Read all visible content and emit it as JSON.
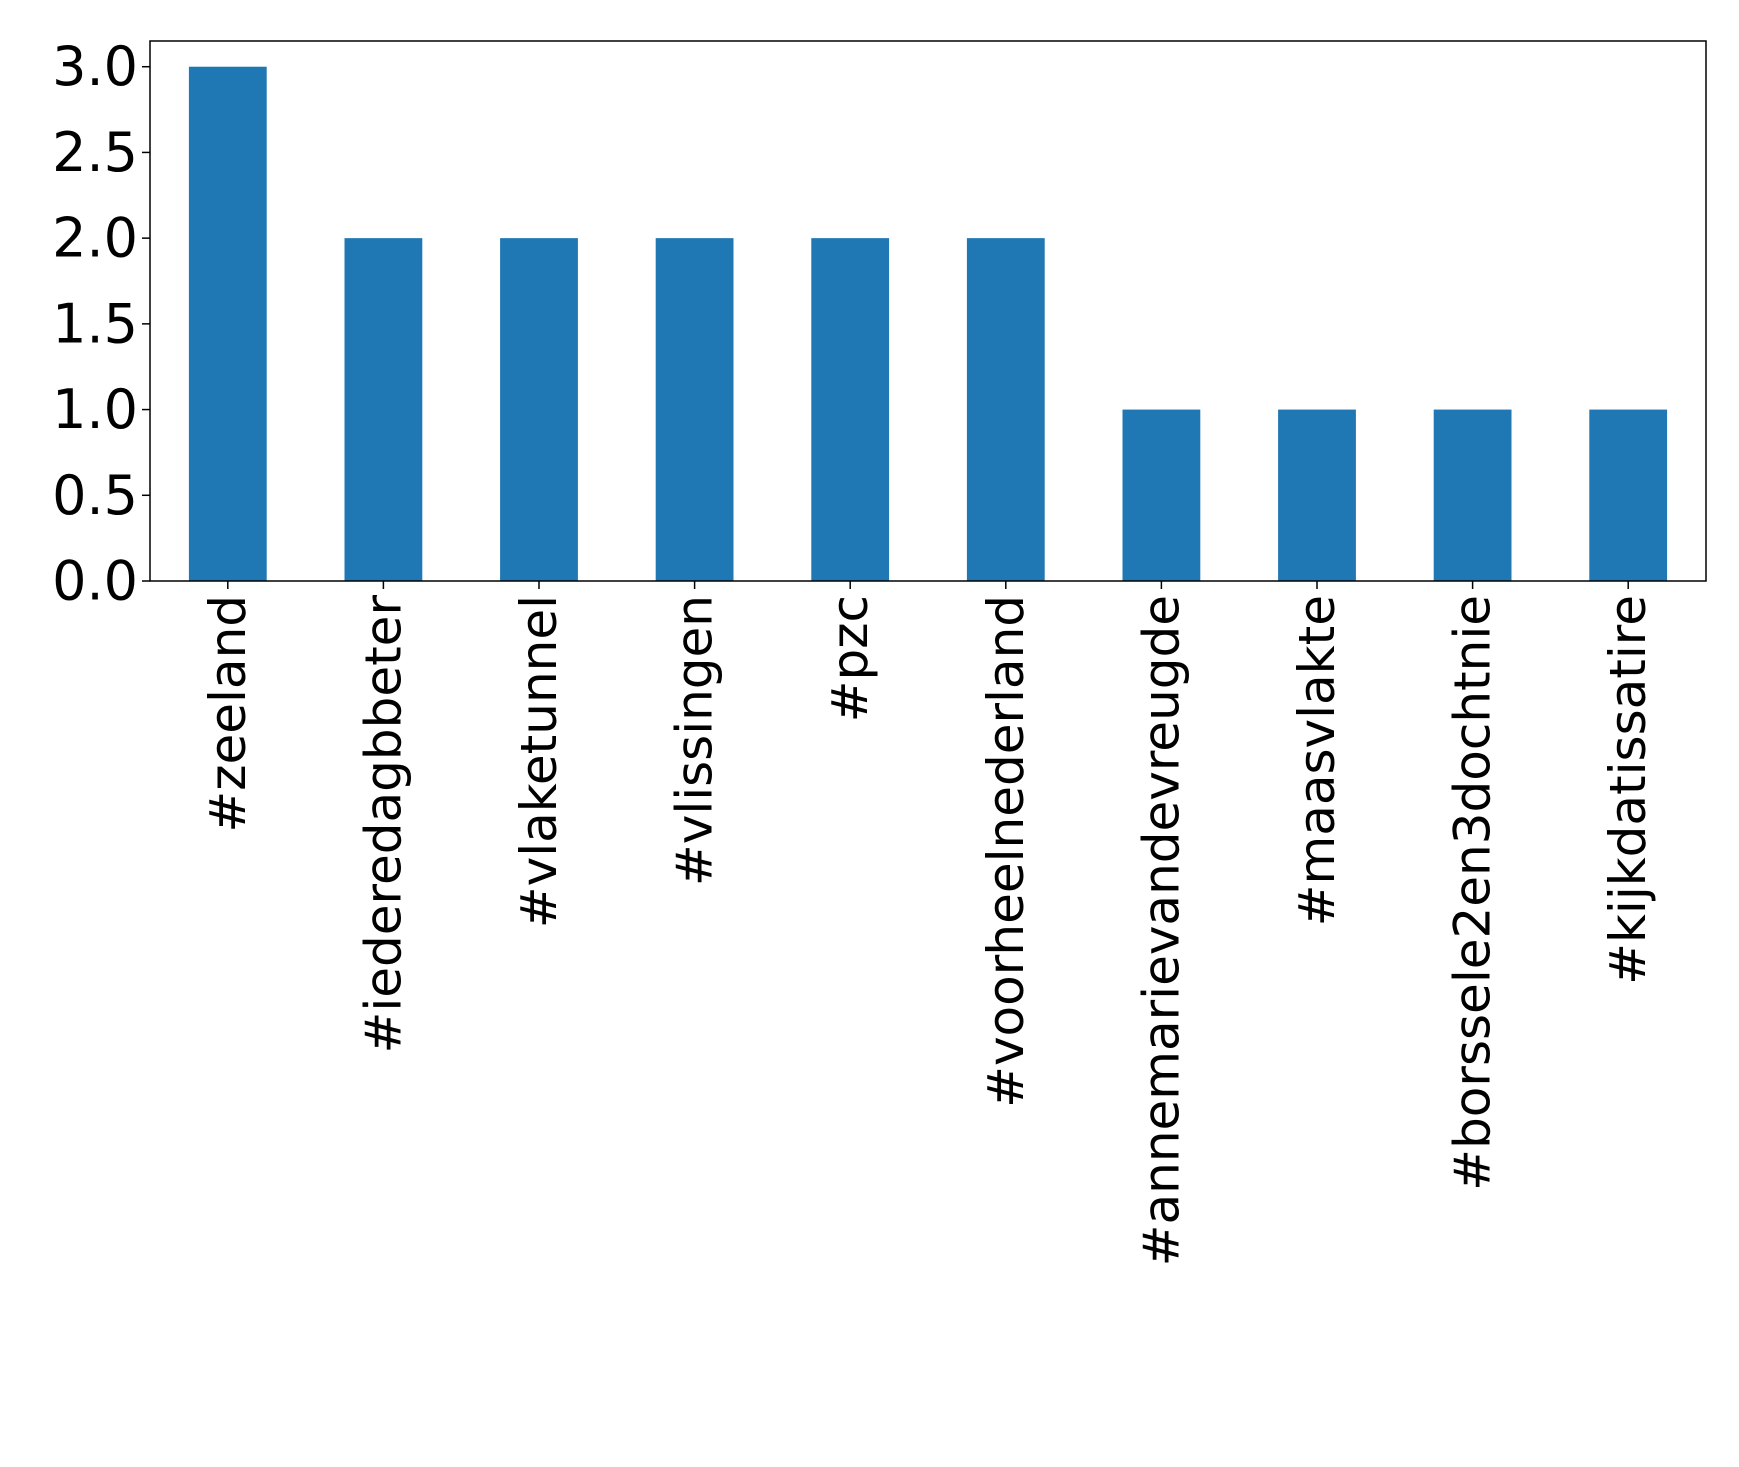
{
  "chart_data": {
    "type": "bar",
    "title": "",
    "xlabel": "",
    "ylabel": "",
    "categories": [
      "#zeeland",
      "#iederedagbbeter",
      "#vlaketunnel",
      "#vlissingen",
      "#pzc",
      "#voorheelnederland",
      "#annemarievandevreugde",
      "#maasvlakte",
      "#borssele2en3dochtnie",
      "#kijkdatissatire"
    ],
    "values": [
      3,
      2,
      2,
      2,
      2,
      2,
      1,
      1,
      1,
      1
    ],
    "ylim": [
      0,
      3.15
    ],
    "yticks": [
      "0.0",
      "0.5",
      "1.0",
      "1.5",
      "2.0",
      "2.5",
      "3.0"
    ],
    "grid": false,
    "legend": "none",
    "bar_color": "#1f77b4",
    "axis_color": "#000000"
  }
}
